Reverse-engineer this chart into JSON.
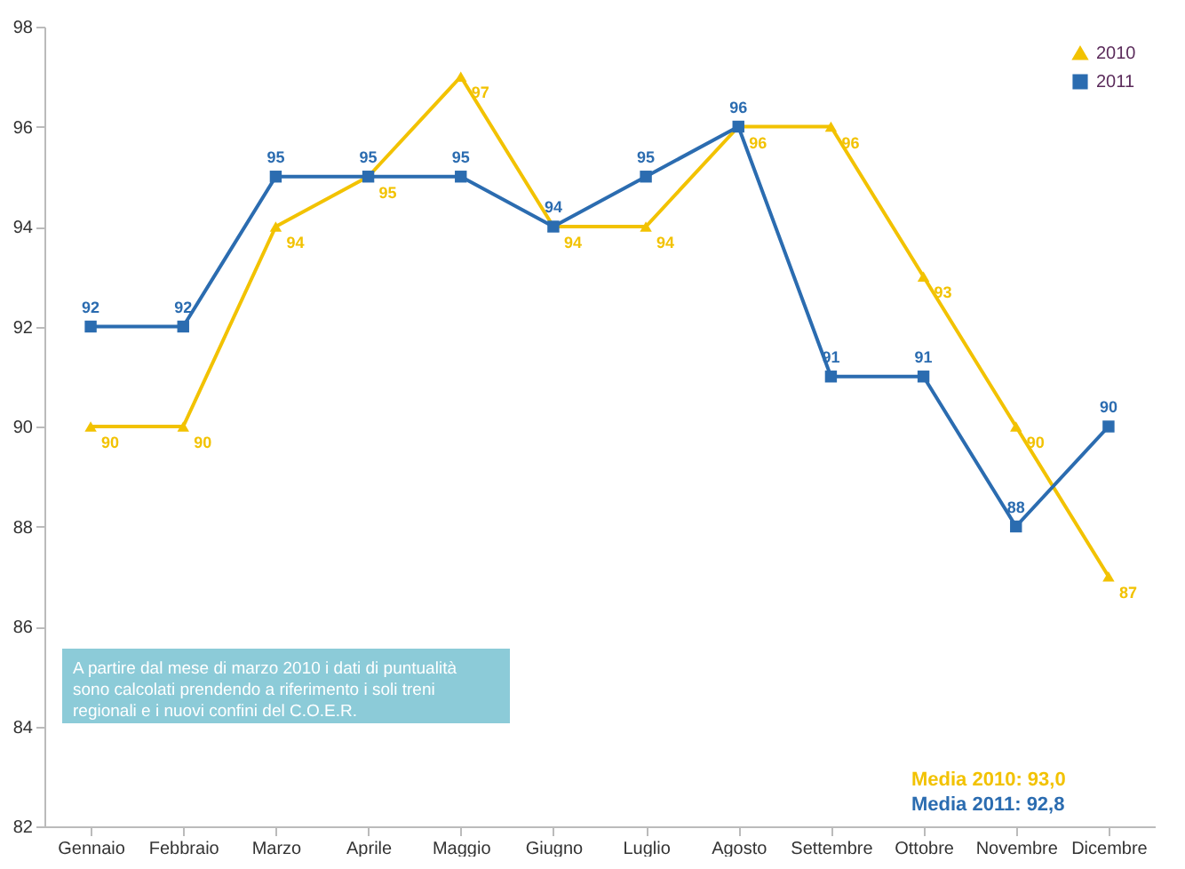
{
  "chart_data": {
    "type": "line",
    "categories": [
      "Gennaio",
      "Febbraio",
      "Marzo",
      "Aprile",
      "Maggio",
      "Giugno",
      "Luglio",
      "Agosto",
      "Settembre",
      "Ottobre",
      "Novembre",
      "Dicembre"
    ],
    "series": [
      {
        "name": "2010",
        "color": "#f2c200",
        "marker": "triangle",
        "values": [
          90,
          90,
          94,
          95,
          97,
          94,
          94,
          96,
          96,
          93,
          90,
          87
        ]
      },
      {
        "name": "2011",
        "color": "#2b6cb0",
        "marker": "square",
        "values": [
          92,
          92,
          95,
          95,
          95,
          94,
          95,
          96,
          91,
          91,
          88,
          90
        ]
      }
    ],
    "ylim": [
      82,
      98
    ],
    "yticks": [
      82,
      84,
      86,
      88,
      90,
      92,
      94,
      96,
      98
    ],
    "grid": false,
    "legend": "top right",
    "data_labels": true,
    "annotations": [
      "A partire dal mese di marzo 2010 i dati di puntualità sono calcolati prendendo a riferimento i soli treni regionali e i nuovi confini del C.O.E.R.",
      "Media 2010: 93,0",
      "Media 2011: 92,8"
    ]
  }
}
